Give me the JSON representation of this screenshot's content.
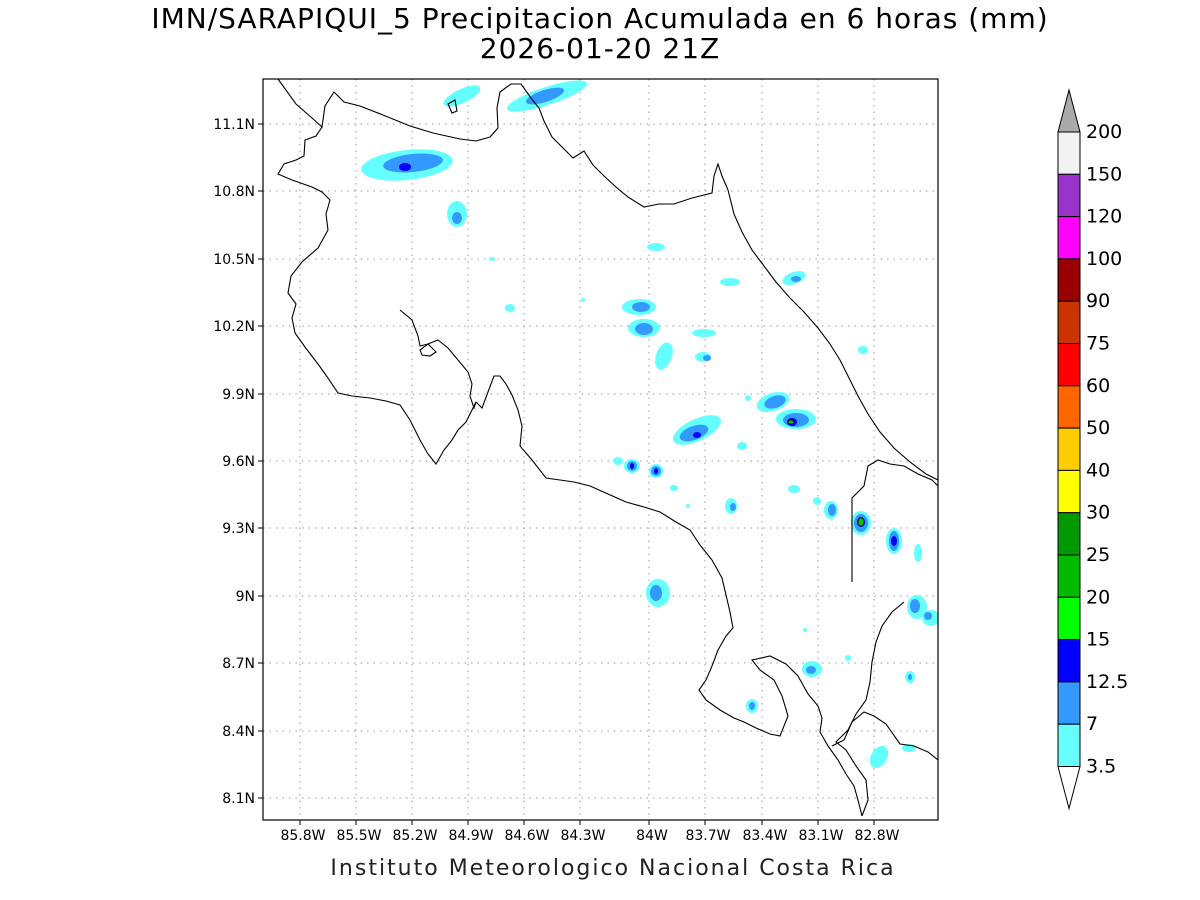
{
  "header": {
    "title": "IMN/SARAPIQUI_5 Precipitacion Acumulada en 6 horas (mm)",
    "subtitle": "2026-01-20 21Z"
  },
  "footer": {
    "credit": "Instituto Meteorologico Nacional Costa Rica"
  },
  "map": {
    "lat_labels": [
      "11.1N",
      "10.8N",
      "10.5N",
      "10.2N",
      "9.9N",
      "9.6N",
      "9.3N",
      "9N",
      "8.7N",
      "8.4N",
      "8.1N"
    ],
    "lon_labels": [
      "85.8W",
      "85.5W",
      "85.2W",
      "84.9W",
      "84.6W",
      "84.3W",
      "84W",
      "83.7W",
      "83.4W",
      "83.1W",
      "82.8W"
    ],
    "grid": true
  },
  "legend": {
    "labels": [
      "200",
      "150",
      "120",
      "100",
      "90",
      "75",
      "60",
      "50",
      "40",
      "30",
      "25",
      "20",
      "15",
      "12.5",
      "7",
      "3.5"
    ],
    "colors": [
      "#f2f2f2",
      "#9933cc",
      "#ff00ff",
      "#990000",
      "#cc3300",
      "#ff0000",
      "#ff6600",
      "#ffcc00",
      "#ffff00",
      "#009900",
      "#00bb00",
      "#00ff00",
      "#0000ff",
      "#3399ff",
      "#66ffff"
    ],
    "top_arrow_color": "#aaaaaa",
    "bottom_arrow_color": "#ffffff"
  },
  "colors": {
    "rain_3_5": "#66ffff",
    "rain_7": "#3399ff",
    "rain_12_5": "#0000ff",
    "rain_20": "#00ff00"
  }
}
